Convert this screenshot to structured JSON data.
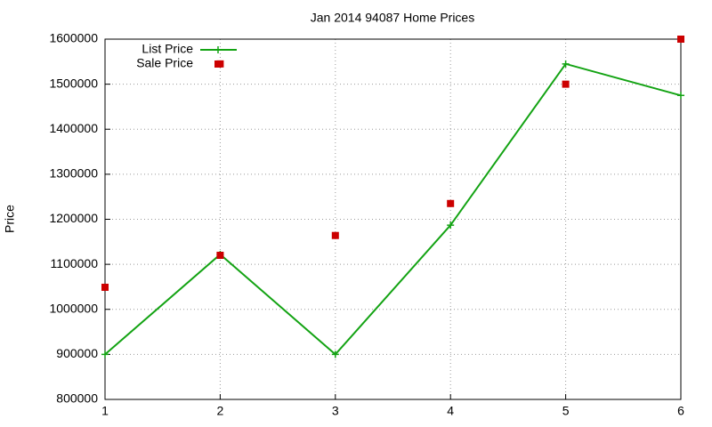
{
  "chart_data": {
    "type": "line",
    "title": "Jan 2014 94087 Home Prices",
    "y_label": "Price",
    "xlim": [
      1,
      6
    ],
    "xticks": [
      1,
      2,
      3,
      4,
      5,
      6
    ],
    "ylim": [
      800000,
      1600000
    ],
    "yticks": [
      800000,
      900000,
      1000000,
      1100000,
      1200000,
      1300000,
      1400000,
      1500000,
      1600000
    ],
    "grid": true,
    "legend": "top-left",
    "series": [
      {
        "name": "List Price",
        "color": "#13a313",
        "style": "linespoints",
        "x": [
          1,
          2,
          3,
          4,
          5,
          6
        ],
        "values": [
          900000,
          1122000,
          900000,
          1187000,
          1545000,
          1475000
        ]
      },
      {
        "name": "Sale Price",
        "color": "#cc0000",
        "style": "points",
        "x": [
          1,
          2,
          2,
          3,
          4,
          5,
          6
        ],
        "values": [
          1049000,
          1120000,
          1545000,
          1164000,
          1235000,
          1500000,
          1600000
        ]
      }
    ]
  }
}
